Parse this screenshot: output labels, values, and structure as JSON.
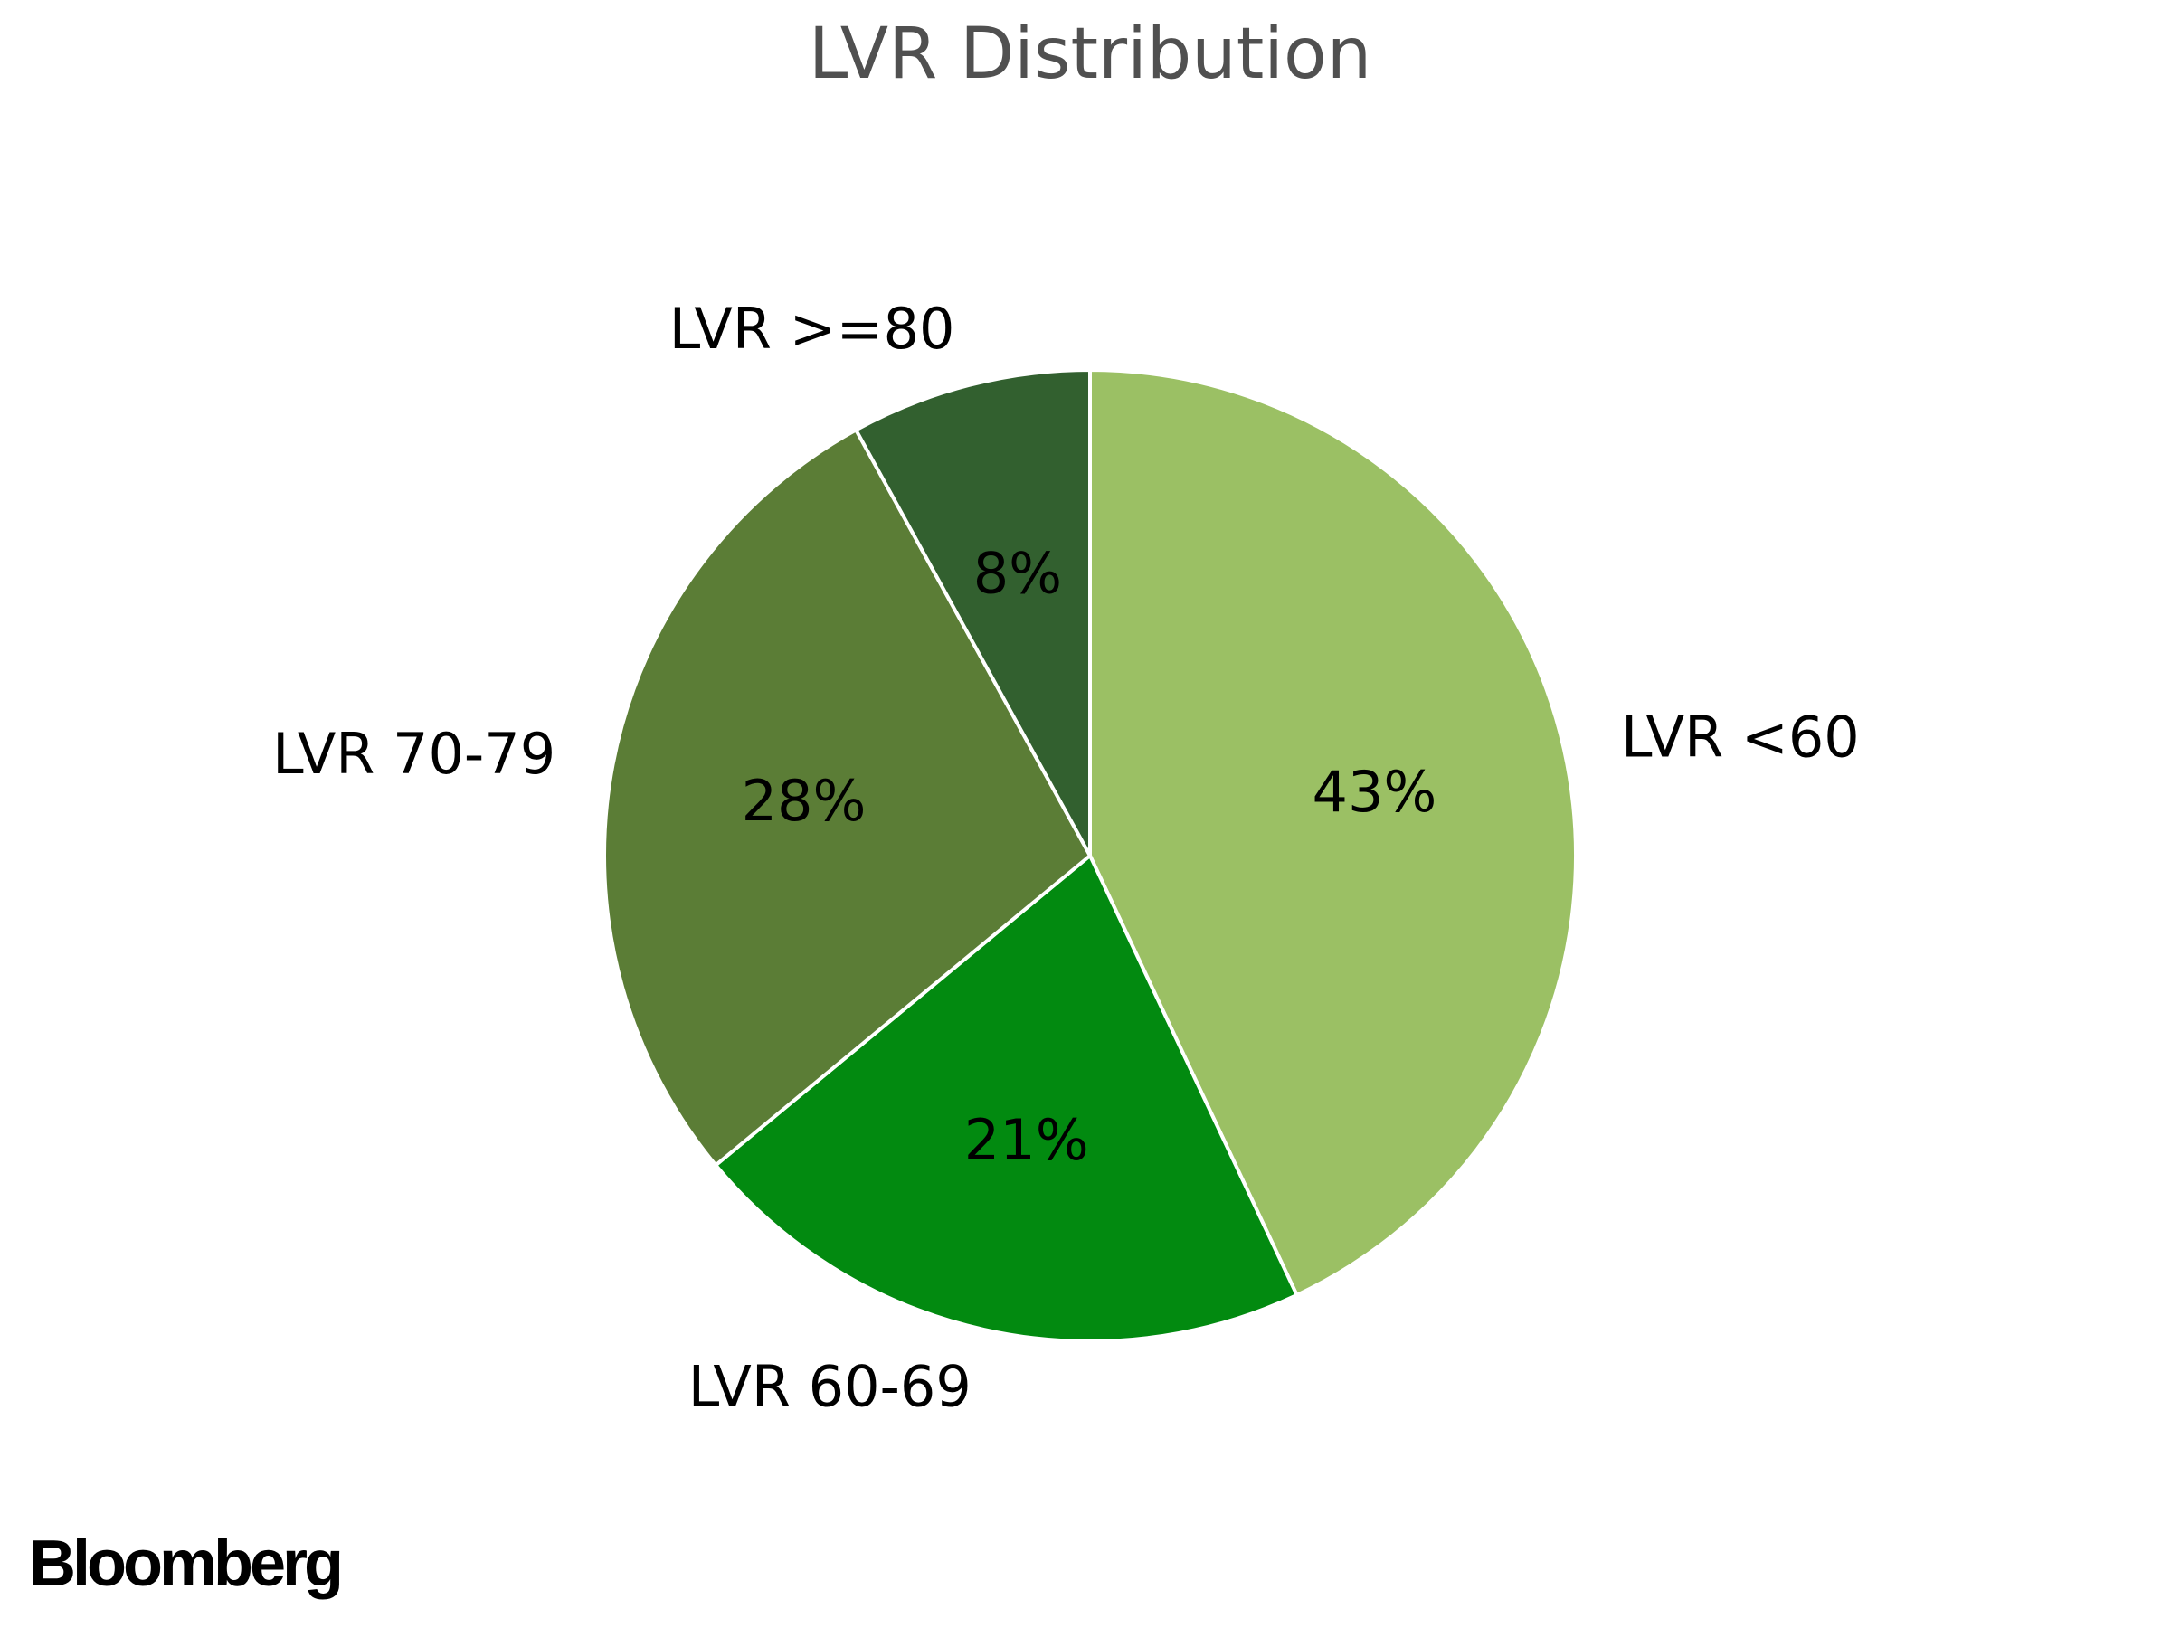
{
  "chart_data": {
    "type": "pie",
    "title": "LVR Distribution",
    "start_angle_deg": 90,
    "direction": "clockwise",
    "slices": [
      {
        "label": "LVR <60",
        "value": 43,
        "display": "43%",
        "color": "#9bc064"
      },
      {
        "label": "LVR 60-69",
        "value": 21,
        "display": "21%",
        "color": "#028a10"
      },
      {
        "label": "LVR 70-79",
        "value": 28,
        "display": "28%",
        "color": "#5b7d36"
      },
      {
        "label": "LVR >=80",
        "value": 8,
        "display": "8%",
        "color": "#32602f"
      }
    ],
    "slice_edge_color": "#ffffff"
  },
  "branding": {
    "logo_text": "Bloomberg"
  }
}
